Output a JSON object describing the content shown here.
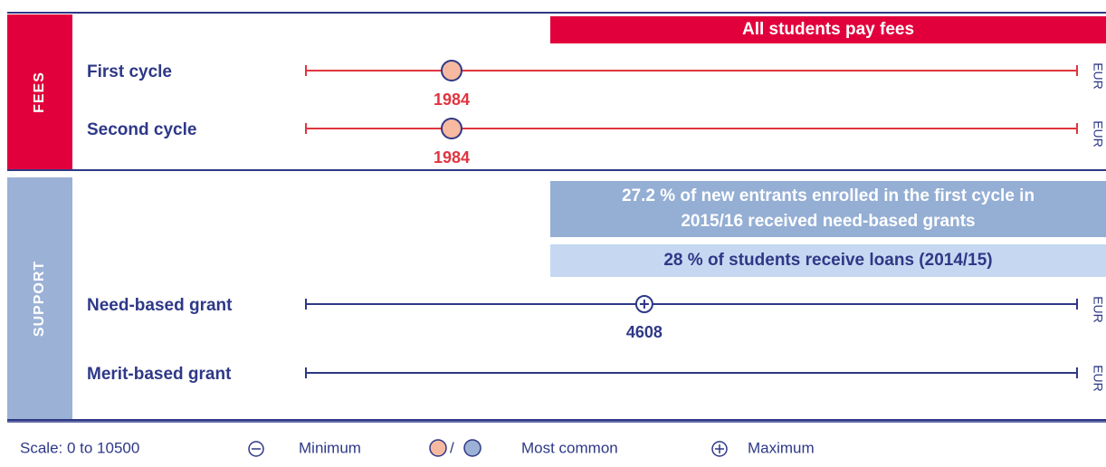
{
  "scale": {
    "label": "Scale: 0 to 10500",
    "xlim": [
      0,
      10500
    ]
  },
  "sections": [
    {
      "label": "FEES",
      "color": "#e2003c",
      "line_color": "#e0353f",
      "value_color": "#e0353f",
      "banners": [
        {
          "lines": [
            "All students pay fees"
          ],
          "fill": "#e2003c",
          "text_color": "#ffffff"
        }
      ],
      "rows": [
        {
          "label": "First cycle",
          "unit": "EUR",
          "most_common": 1984
        },
        {
          "label": "Second cycle",
          "unit": "EUR",
          "most_common": 1984
        }
      ]
    },
    {
      "label": "SUPPORT",
      "color": "#9bb1d6",
      "line_color": "#2e3887",
      "value_color": "#2e3887",
      "banners": [
        {
          "lines": [
            "27.2 % of new entrants enrolled in the first cycle in",
            "2015/16 received need-based grants"
          ],
          "fill": "#94aed4",
          "text_color": "#ffffff"
        },
        {
          "lines": [
            "28 % of students receive loans (2014/15)"
          ],
          "fill": "#c6d8f1",
          "text_color": "#2e3887"
        }
      ],
      "rows": [
        {
          "label": "Need-based grant",
          "unit": "EUR",
          "maximum": 4608
        },
        {
          "label": "Merit-based grant",
          "unit": "EUR"
        }
      ]
    }
  ],
  "legend": {
    "minimum": "Minimum",
    "separator": "/",
    "most_common": "Most common",
    "maximum": "Maximum"
  }
}
